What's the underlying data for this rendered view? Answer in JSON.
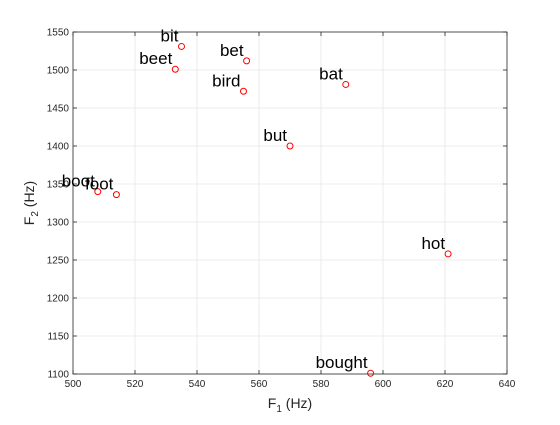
{
  "chart_data": {
    "type": "scatter",
    "title": "",
    "xlabel": {
      "main": "F",
      "sub": "1",
      "suffix": " (Hz)"
    },
    "ylabel": {
      "main": "F",
      "sub": "2",
      "suffix": " (Hz)"
    },
    "xlim": [
      500,
      640
    ],
    "ylim": [
      1100,
      1550
    ],
    "grid": true,
    "marker_color": "#ff0000",
    "axis_color": "#262626",
    "grid_color": "#e6e6e6",
    "xticks": [
      500,
      520,
      540,
      560,
      580,
      600,
      620,
      640
    ],
    "yticks": [
      1100,
      1150,
      1200,
      1250,
      1300,
      1350,
      1400,
      1450,
      1500,
      1550
    ],
    "points": [
      {
        "label": "bit",
        "x": 535,
        "y": 1531
      },
      {
        "label": "beet",
        "x": 533,
        "y": 1501
      },
      {
        "label": "bet",
        "x": 556,
        "y": 1512
      },
      {
        "label": "bird",
        "x": 555,
        "y": 1472
      },
      {
        "label": "bat",
        "x": 588,
        "y": 1481
      },
      {
        "label": "but",
        "x": 570,
        "y": 1400
      },
      {
        "label": "boot",
        "x": 508,
        "y": 1340
      },
      {
        "label": "foot",
        "x": 514,
        "y": 1336
      },
      {
        "label": "hot",
        "x": 621,
        "y": 1258
      },
      {
        "label": "bought",
        "x": 596,
        "y": 1101
      }
    ]
  }
}
